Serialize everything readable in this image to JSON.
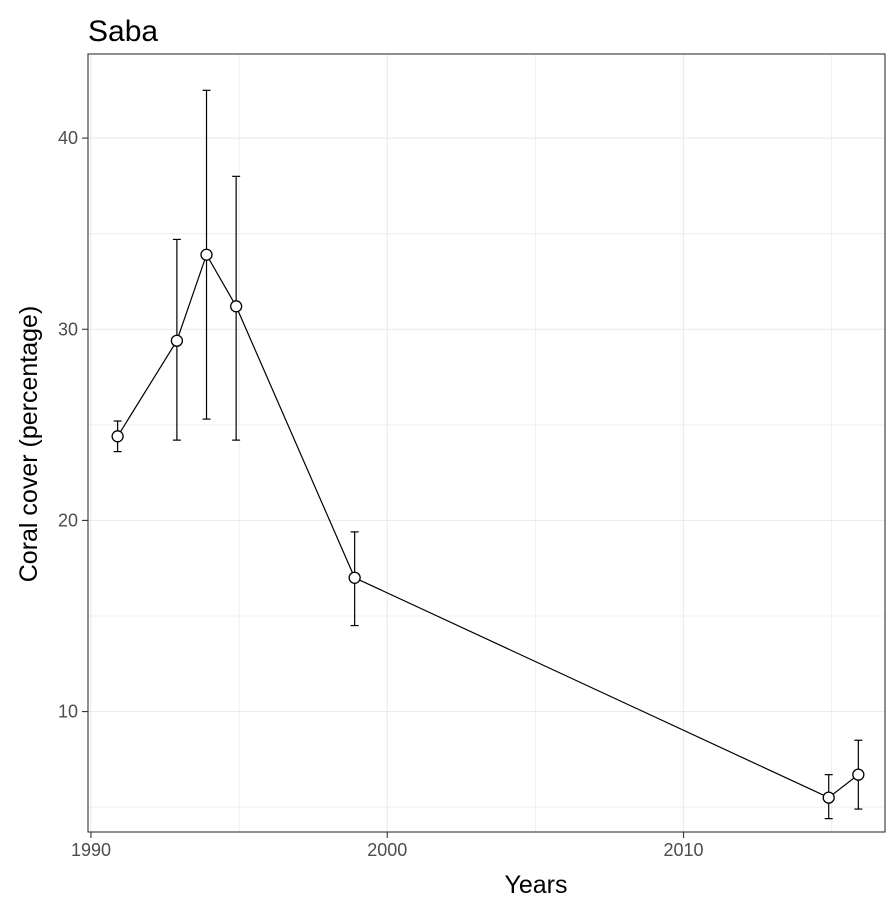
{
  "chart_data": {
    "type": "line",
    "title": "Saba",
    "xlabel": "Years",
    "ylabel": "Coral cover (percentage)",
    "xlim": [
      1989.9,
      2016.8
    ],
    "ylim": [
      3.7,
      44.4
    ],
    "x_ticks": [
      1990,
      2000,
      2010
    ],
    "x_tick_labels": [
      "1990",
      "2000",
      "2010"
    ],
    "y_ticks": [
      10,
      20,
      30,
      40
    ],
    "y_tick_labels": [
      "10",
      "20",
      "30",
      "40"
    ],
    "x_minor_gridlines": [
      1995,
      2005,
      2015
    ],
    "y_minor_gridlines": [
      5,
      15,
      25,
      35
    ],
    "grid": true,
    "legend": "none",
    "series": [
      {
        "x": [
          1990.9,
          1992.9,
          1993.9,
          1994.9,
          1998.9,
          2014.9,
          2015.9
        ],
        "y": [
          24.4,
          29.4,
          33.9,
          31.2,
          17.0,
          5.5,
          6.7
        ],
        "error_low": [
          23.6,
          24.2,
          25.3,
          24.2,
          14.5,
          4.4,
          4.9
        ],
        "error_high": [
          25.2,
          34.7,
          42.5,
          38.0,
          19.4,
          6.7,
          8.5
        ]
      }
    ]
  },
  "colors": {
    "background": "#ffffff",
    "grid": "#ebebeb",
    "axis": "#333333",
    "series_line": "#000000",
    "marker_fill": "#ffffff",
    "tick_text": "#4d4d4d",
    "title_text": "#000000"
  }
}
